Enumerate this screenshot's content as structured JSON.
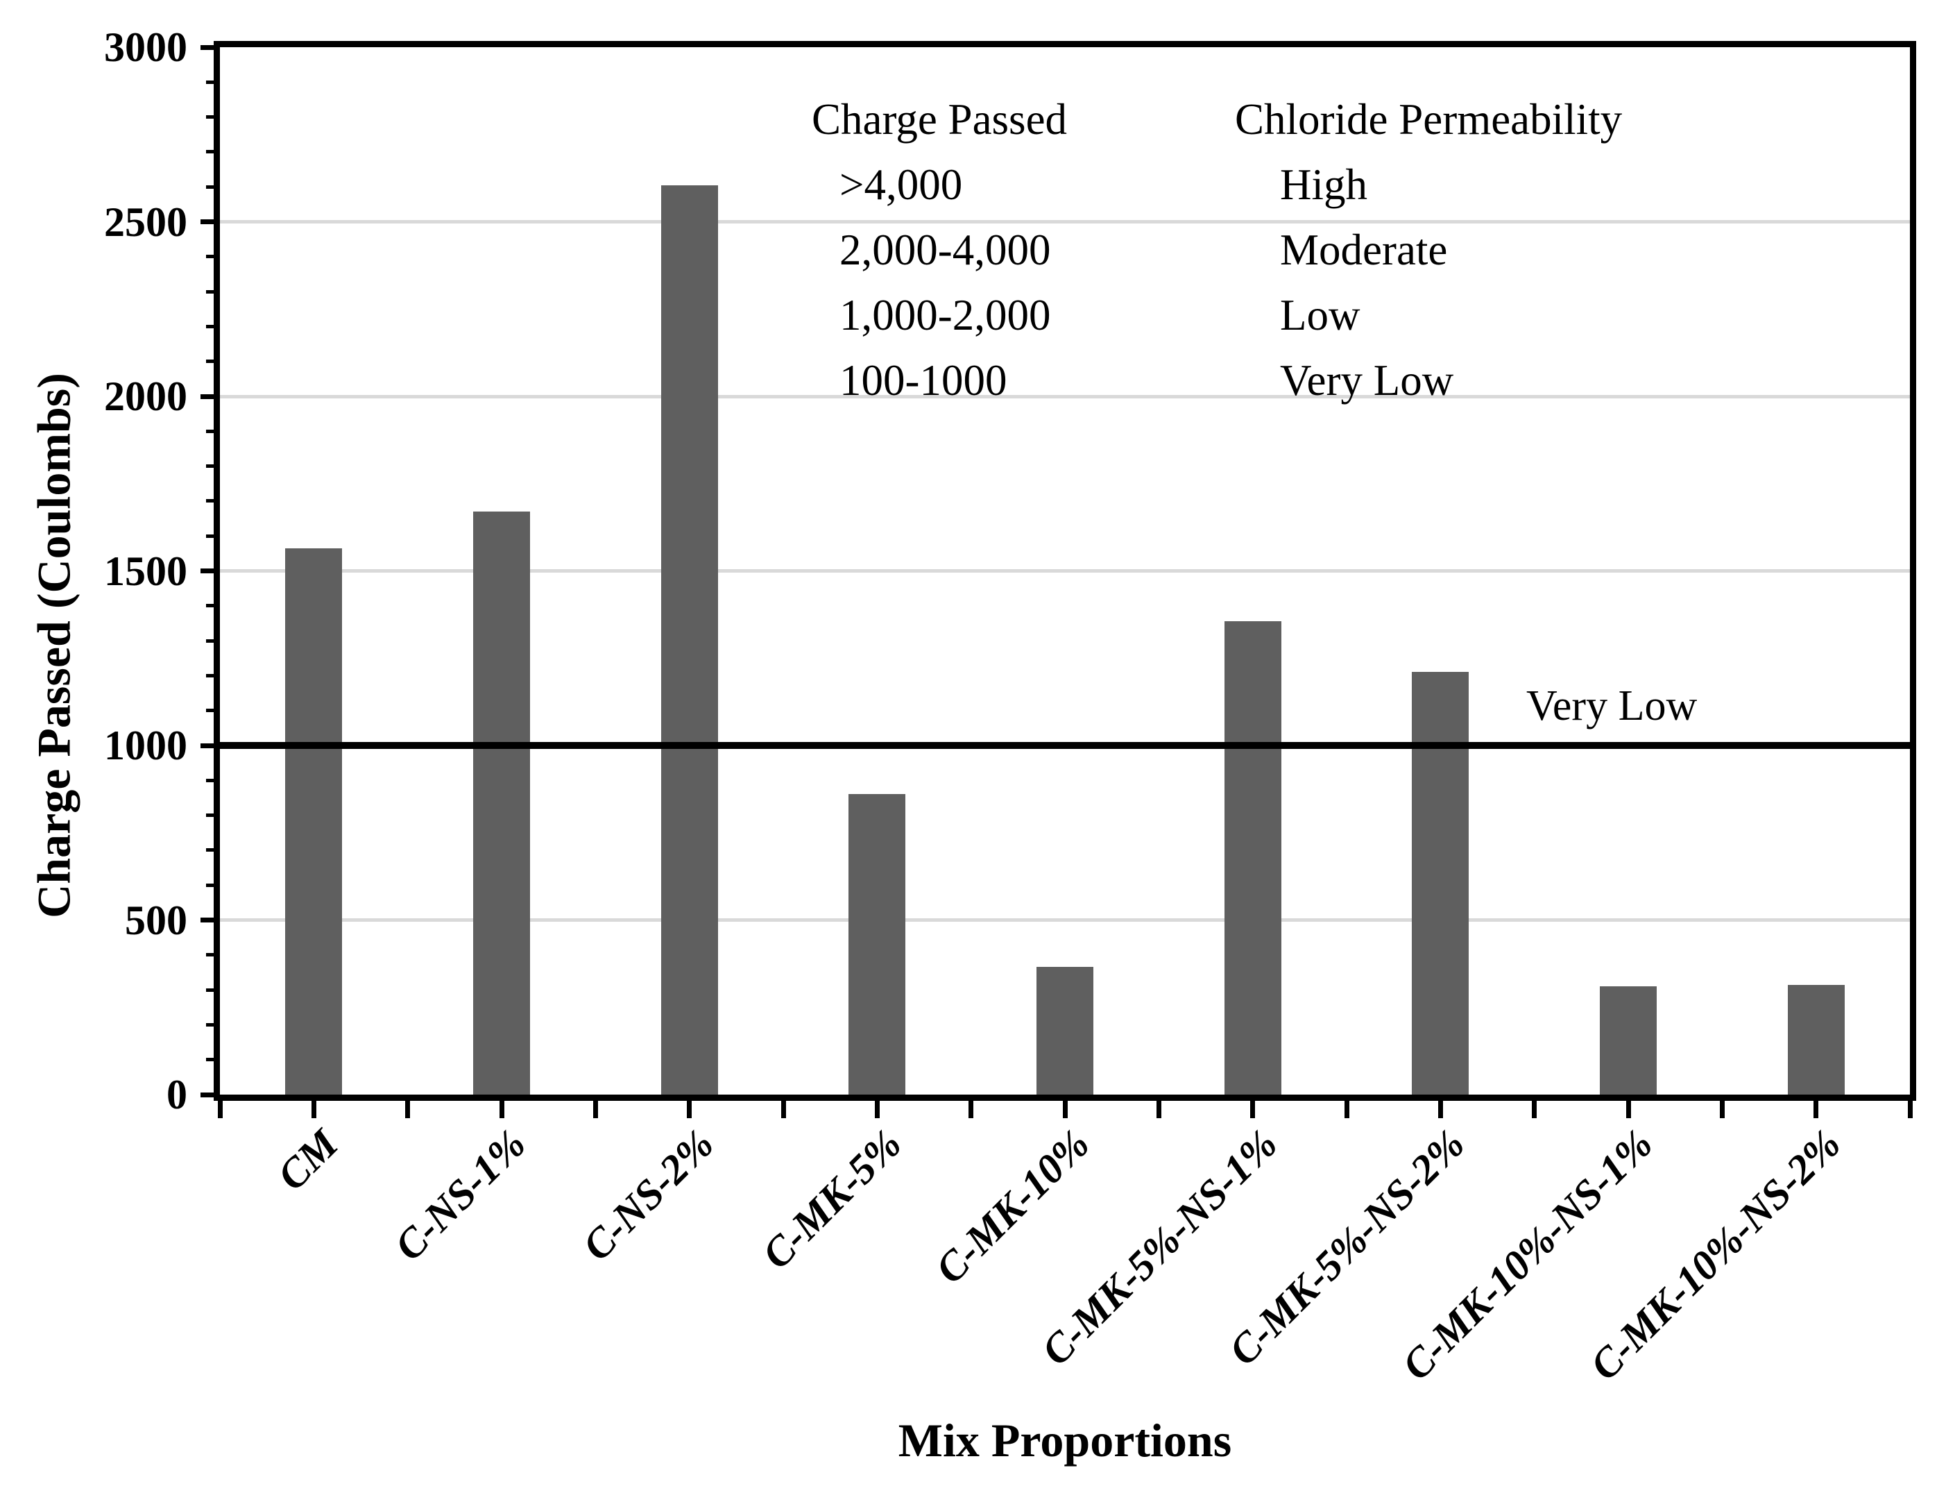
{
  "chart_data": {
    "type": "bar",
    "title": "",
    "xlabel": "Mix Proportions",
    "ylabel": "Charge Passed (Coulombs)",
    "categories": [
      "CM",
      "C-NS-1%",
      "C-NS-2%",
      "C-MK-5%",
      "C-MK-10%",
      "C-MK-5%-NS-1%",
      "C-MK-5%-NS-2%",
      "C-MK-10%-NS-1%",
      "C-MK-10%-NS-2%"
    ],
    "values": [
      1565,
      1670,
      2605,
      860,
      365,
      1355,
      1210,
      310,
      315
    ],
    "ylim": [
      0,
      3000
    ],
    "ytick_labels": [
      "0",
      "500",
      "1000",
      "1500",
      "2000",
      "2500",
      "3000"
    ],
    "ytick_step": 500,
    "yminor_step": 100,
    "grid": "horizontal-major",
    "legend": "none",
    "threshold": {
      "value": 1000,
      "label": "Very Low"
    },
    "annotation_table": {
      "header": {
        "left": "Charge Passed",
        "right": "Chloride Permeability"
      },
      "rows": [
        {
          "charge": ">4,000",
          "permeability": "High"
        },
        {
          "charge": "2,000-4,000",
          "permeability": "Moderate"
        },
        {
          "charge": "1,000-2,000",
          "permeability": "Low"
        },
        {
          "charge": "100-1000",
          "permeability": "Very Low"
        }
      ]
    },
    "colors": {
      "bar": "#5F5F5F",
      "gridline": "#D9D9D9",
      "axis": "#000000",
      "threshold_line": "#000000",
      "background": "#FFFFFF"
    }
  }
}
